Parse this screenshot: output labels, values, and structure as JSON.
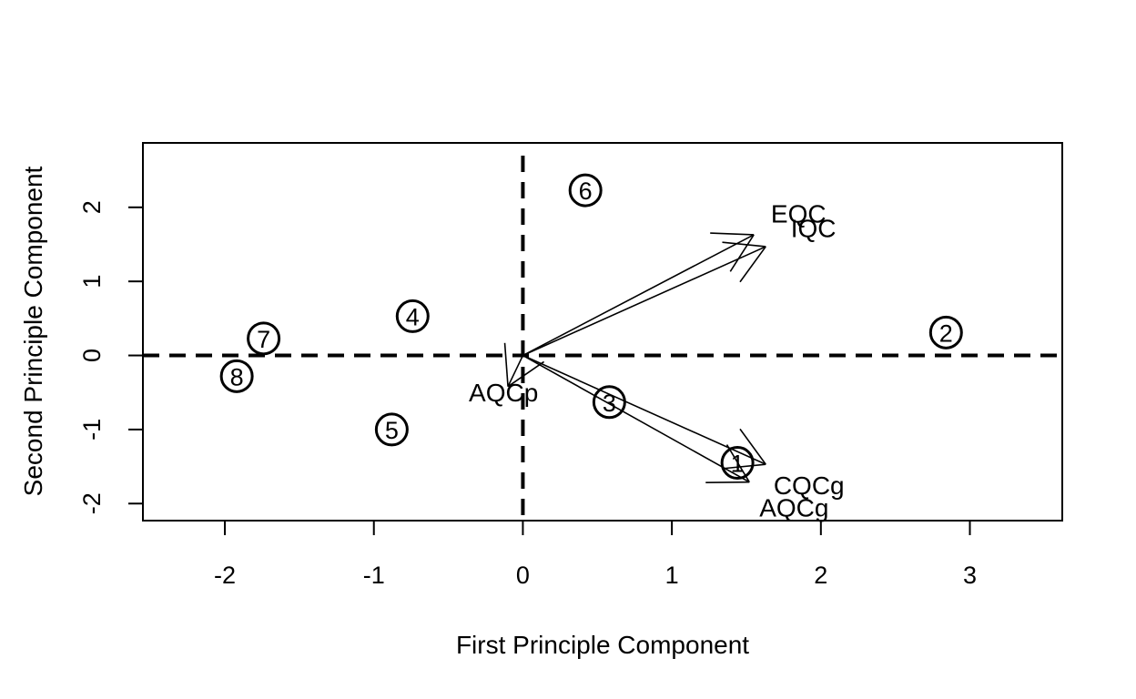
{
  "chart_data": {
    "type": "scatter",
    "subtype": "pca-biplot",
    "title": "",
    "xlabel": "First Principle Component",
    "ylabel": "Second Principle Component",
    "xlim": [
      -2.55,
      3.62
    ],
    "ylim": [
      -2.23,
      2.87
    ],
    "xticks": [
      -2,
      -1,
      0,
      1,
      2,
      3
    ],
    "yticks": [
      -2,
      -1,
      0,
      1,
      2
    ],
    "grid": false,
    "reference_lines": {
      "x": 0,
      "y": 0,
      "style": "dashed"
    },
    "points": [
      {
        "label": "1",
        "x": 1.44,
        "y": -1.45
      },
      {
        "label": "2",
        "x": 2.84,
        "y": 0.31
      },
      {
        "label": "3",
        "x": 0.58,
        "y": -0.63
      },
      {
        "label": "4",
        "x": -0.74,
        "y": 0.53
      },
      {
        "label": "5",
        "x": -0.88,
        "y": -1.0
      },
      {
        "label": "6",
        "x": 0.42,
        "y": 2.23
      },
      {
        "label": "7",
        "x": -1.74,
        "y": 0.23
      },
      {
        "label": "8",
        "x": -1.92,
        "y": -0.28
      }
    ],
    "loadings": [
      {
        "name": "EQC",
        "x": 1.55,
        "y": 1.63,
        "label_x": 1.85,
        "label_y": 1.92
      },
      {
        "name": "IQC",
        "x": 1.63,
        "y": 1.47,
        "label_x": 1.95,
        "label_y": 1.72
      },
      {
        "name": "AQCp",
        "x": -0.1,
        "y": -0.42,
        "label_x": -0.13,
        "label_y": -0.5
      },
      {
        "name": "CQCg",
        "x": 1.63,
        "y": -1.47,
        "label_x": 1.92,
        "label_y": -1.75
      },
      {
        "name": "AQCg",
        "x": 1.52,
        "y": -1.71,
        "label_x": 1.82,
        "label_y": -2.05
      }
    ]
  }
}
